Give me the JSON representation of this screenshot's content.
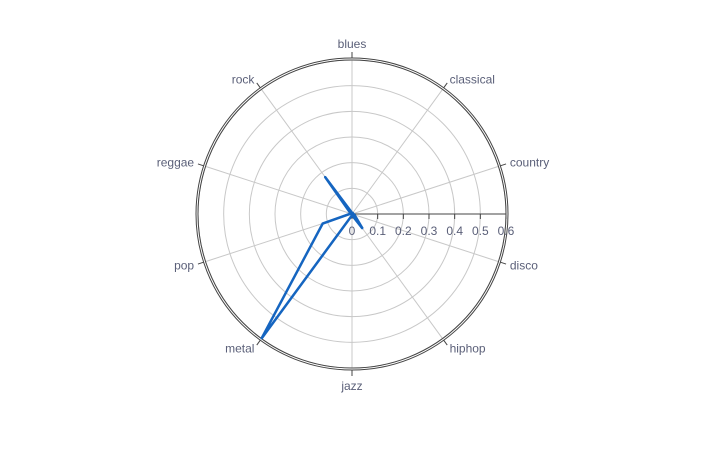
{
  "chart_data": {
    "type": "radar",
    "axes": [
      "blues",
      "classical",
      "country",
      "disco",
      "hiphop",
      "jazz",
      "metal",
      "pop",
      "reggae",
      "rock"
    ],
    "series": [
      {
        "values": [
          0.005,
          0.005,
          0.005,
          0.01,
          0.07,
          0.005,
          0.6,
          0.12,
          0.005,
          0.18
        ]
      }
    ],
    "radial_ticks": [
      "0",
      "0.1",
      "0.2",
      "0.3",
      "0.4",
      "0.5",
      "0.6"
    ],
    "rlim": [
      0,
      0.6
    ],
    "grid": true,
    "legend": "none",
    "colors": {
      "series": "#1565c0",
      "grid": "#c8c8c8",
      "outer_ring": "#444444",
      "radial_axis": "#444444",
      "label_text": "#5a5f78"
    }
  }
}
